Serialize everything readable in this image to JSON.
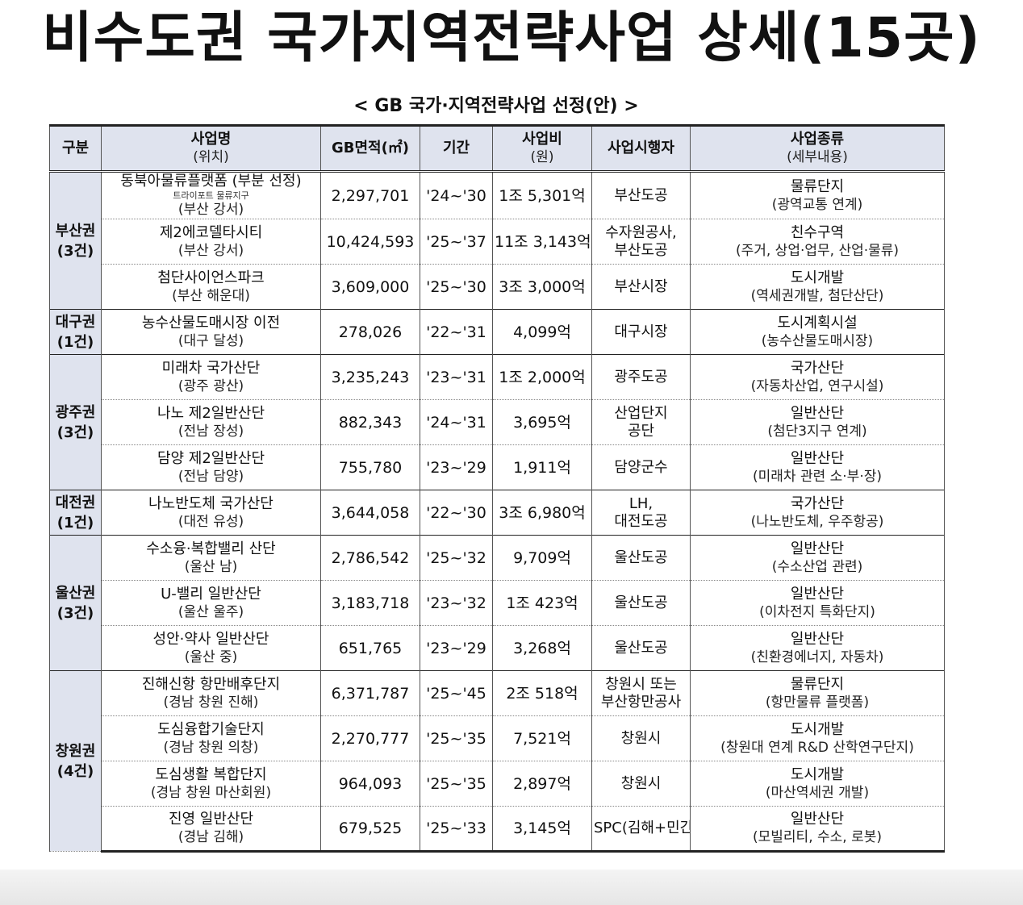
{
  "title": "비수도권 국가지역전략사업 상세(15곳)",
  "subtitle": "< GB 국가·지역전략사업 선정(안) >",
  "table": {
    "headers": {
      "region": "구분",
      "name": "사업명",
      "name_sub": "(위치)",
      "area": "GB면적(㎡)",
      "period": "기간",
      "cost": "사업비",
      "cost_sub": "(원)",
      "operator": "사업시행자",
      "type": "사업종류",
      "type_sub": "(세부내용)"
    },
    "regions": [
      {
        "name": "부산권",
        "count": "(3건)"
      },
      {
        "name": "대구권",
        "count": "(1건)"
      },
      {
        "name": "광주권",
        "count": "(3건)"
      },
      {
        "name": "대전권",
        "count": "(1건)"
      },
      {
        "name": "울산권",
        "count": "(3건)"
      },
      {
        "name": "창원권",
        "count": "(4건)"
      }
    ],
    "rows": [
      {
        "name": "동북아물류플랫폼 (부분 선정)",
        "name_note": "트라이포트 물류지구",
        "location": "(부산 강서)",
        "area": "2,297,701",
        "period": "'24~'30",
        "cost": "1조 5,301억",
        "operator": "부산도공",
        "operator2": "",
        "type": "물류단지",
        "type_detail": "(광역교통 연계)"
      },
      {
        "name": "제2에코델타시티",
        "name_note": "",
        "location": "(부산 강서)",
        "area": "10,424,593",
        "period": "'25~'37",
        "cost": "11조 3,143억",
        "operator": "수자원공사,",
        "operator2": "부산도공",
        "type": "친수구역",
        "type_detail": "(주거, 상업·업무, 산업·물류)"
      },
      {
        "name": "첨단사이언스파크",
        "name_note": "",
        "location": "(부산 해운대)",
        "area": "3,609,000",
        "period": "'25~'30",
        "cost": "3조 3,000억",
        "operator": "부산시장",
        "operator2": "",
        "type": "도시개발",
        "type_detail": "(역세권개발, 첨단산단)"
      },
      {
        "name": "농수산물도매시장 이전",
        "name_note": "",
        "location": "(대구 달성)",
        "area": "278,026",
        "period": "'22~'31",
        "cost": "4,099억",
        "operator": "대구시장",
        "operator2": "",
        "type": "도시계획시설",
        "type_detail": "(농수산물도매시장)"
      },
      {
        "name": "미래차 국가산단",
        "name_note": "",
        "location": "(광주 광산)",
        "area": "3,235,243",
        "period": "'23~'31",
        "cost": "1조 2,000억",
        "operator": "광주도공",
        "operator2": "",
        "type": "국가산단",
        "type_detail": "(자동차산업, 연구시설)"
      },
      {
        "name": "나노 제2일반산단",
        "name_note": "",
        "location": "(전남 장성)",
        "area": "882,343",
        "period": "'24~'31",
        "cost": "3,695억",
        "operator": "산업단지",
        "operator2": "공단",
        "type": "일반산단",
        "type_detail": "(첨단3지구 연계)"
      },
      {
        "name": "담양 제2일반산단",
        "name_note": "",
        "location": "(전남 담양)",
        "area": "755,780",
        "period": "'23~'29",
        "cost": "1,911억",
        "operator": "담양군수",
        "operator2": "",
        "type": "일반산단",
        "type_detail": "(미래차 관련 소·부·장)"
      },
      {
        "name": "나노반도체 국가산단",
        "name_note": "",
        "location": "(대전 유성)",
        "area": "3,644,058",
        "period": "'22~'30",
        "cost": "3조 6,980억",
        "operator": "LH,",
        "operator2": "대전도공",
        "type": "국가산단",
        "type_detail": "(나노반도체, 우주항공)"
      },
      {
        "name": "수소융·복합밸리 산단",
        "name_note": "",
        "location": "(울산 남)",
        "area": "2,786,542",
        "period": "'25~'32",
        "cost": "9,709억",
        "operator": "울산도공",
        "operator2": "",
        "type": "일반산단",
        "type_detail": "(수소산업 관련)"
      },
      {
        "name": "U-밸리 일반산단",
        "name_note": "",
        "location": "(울산 울주)",
        "area": "3,183,718",
        "period": "'23~'32",
        "cost": "1조 423억",
        "operator": "울산도공",
        "operator2": "",
        "type": "일반산단",
        "type_detail": "(이차전지 특화단지)"
      },
      {
        "name": "성안·약사 일반산단",
        "name_note": "",
        "location": "(울산 중)",
        "area": "651,765",
        "period": "'23~'29",
        "cost": "3,268억",
        "operator": "울산도공",
        "operator2": "",
        "type": "일반산단",
        "type_detail": "(친환경에너지, 자동차)"
      },
      {
        "name": "진해신항 항만배후단지",
        "name_note": "",
        "location": "(경남 창원 진해)",
        "area": "6,371,787",
        "period": "'25~'45",
        "cost": "2조 518억",
        "operator": "창원시 또는",
        "operator2": "부산항만공사",
        "type": "물류단지",
        "type_detail": "(항만물류 플랫폼)"
      },
      {
        "name": "도심융합기술단지",
        "name_note": "",
        "location": "(경남 창원 의창)",
        "area": "2,270,777",
        "period": "'25~'35",
        "cost": "7,521억",
        "operator": "창원시",
        "operator2": "",
        "type": "도시개발",
        "type_detail": "(창원대 연계 R&D 산학연구단지)"
      },
      {
        "name": "도심생활 복합단지",
        "name_note": "",
        "location": "(경남 창원 마산회원)",
        "area": "964,093",
        "period": "'25~'35",
        "cost": "2,897억",
        "operator": "창원시",
        "operator2": "",
        "type": "도시개발",
        "type_detail": "(마산역세권 개발)"
      },
      {
        "name": "진영 일반산단",
        "name_note": "",
        "location": "(경남 김해)",
        "area": "679,525",
        "period": "'25~'33",
        "cost": "3,145억",
        "operator": "SPC(김해+민간)",
        "operator2": "",
        "type": "일반산단",
        "type_detail": "(모빌리티, 수소, 로봇)"
      }
    ]
  }
}
